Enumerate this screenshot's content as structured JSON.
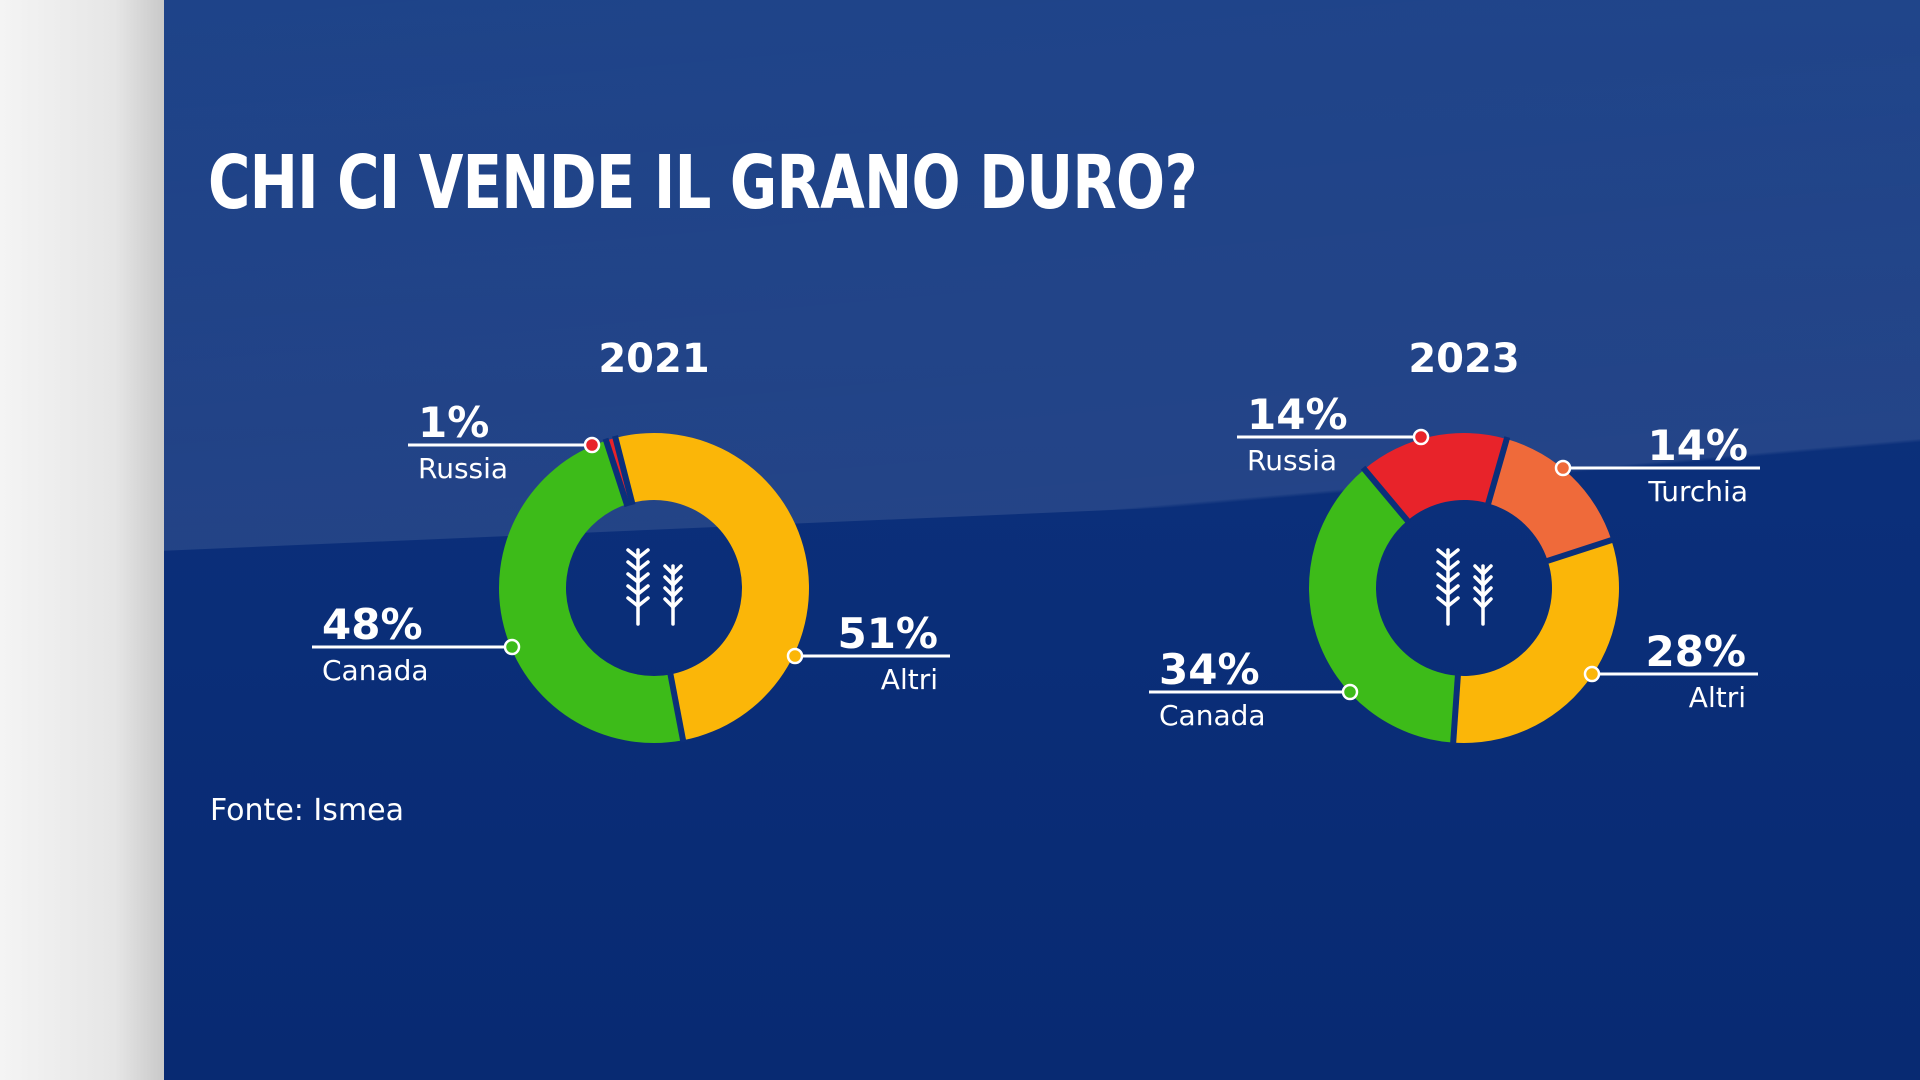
{
  "title": "CHI CI VENDE IL GRANO DURO?",
  "source": "Fonte: Ismea",
  "colors": {
    "background": "#0b2f7a",
    "russia": "#e8232a",
    "turchia": "#ef6a3a",
    "canada": "#3dbb19",
    "altri": "#fbb608",
    "gap": "#0b2f7a"
  },
  "icons": {
    "center": "wheat-icon"
  },
  "chart_data": [
    {
      "type": "pie",
      "title": "2021",
      "series": [
        {
          "name": "Russia",
          "value": 1,
          "label": "1%",
          "color": "#e8232a"
        },
        {
          "name": "Altri",
          "value": 51,
          "label": "51%",
          "color": "#fbb608"
        },
        {
          "name": "Canada",
          "value": 48,
          "label": "48%",
          "color": "#3dbb19"
        }
      ]
    },
    {
      "type": "pie",
      "title": "2023",
      "series": [
        {
          "name": "Russia",
          "value": 14,
          "label": "14%",
          "color": "#e8232a"
        },
        {
          "name": "Turchia",
          "value": 14,
          "label": "14%",
          "color": "#ef6a3a"
        },
        {
          "name": "Altri",
          "value": 28,
          "label": "28%",
          "color": "#fbb608"
        },
        {
          "name": "Canada",
          "value": 34,
          "label": "34%",
          "color": "#3dbb19"
        }
      ]
    }
  ]
}
